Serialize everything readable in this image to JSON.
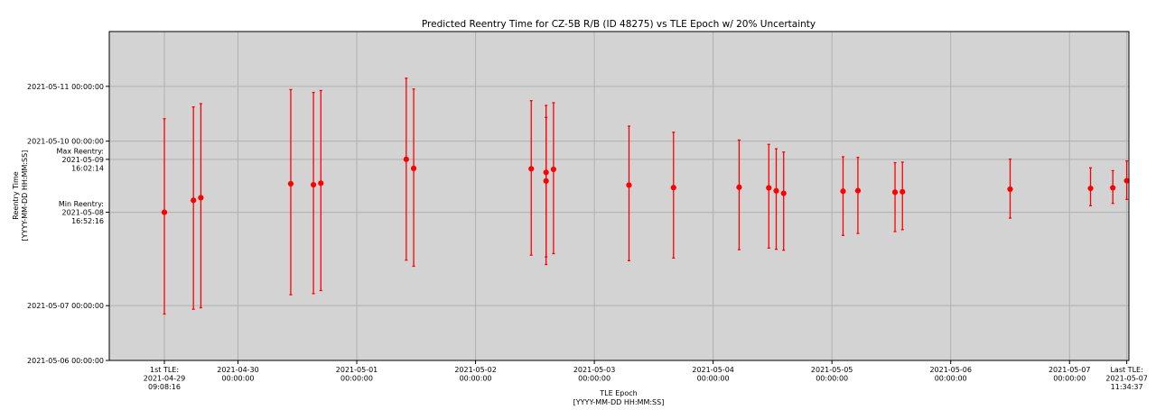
{
  "chart_data": {
    "type": "scatter",
    "title": "Predicted Reentry Time for CZ-5B R/B (ID 48275) vs TLE Epoch w/ 20% Uncertainty",
    "xlabel": [
      "TLE Epoch",
      "[YYYY-MM-DD HH:MM:SS]"
    ],
    "ylabel": [
      "Reentry Time",
      "[YYYY-MM-DD HH:MM:SS]"
    ],
    "xlim": [
      "2021-04-28 22:00",
      "2021-05-07 12:00"
    ],
    "ylim": [
      "2021-05-06 00:00",
      "2021-05-12 00:00"
    ],
    "grid": true,
    "background": "#d3d3d3",
    "marker_color": "#ff0000",
    "x_ticks": [
      {
        "value": "2021-04-29 09:08",
        "lines": [
          "1st TLE:",
          "2021-04-29",
          "09:08:16"
        ]
      },
      {
        "value": "2021-04-30 00:00",
        "lines": [
          "2021-04-30",
          "00:00:00"
        ]
      },
      {
        "value": "2021-05-01 00:00",
        "lines": [
          "2021-05-01",
          "00:00:00"
        ]
      },
      {
        "value": "2021-05-02 00:00",
        "lines": [
          "2021-05-02",
          "00:00:00"
        ]
      },
      {
        "value": "2021-05-03 00:00",
        "lines": [
          "2021-05-03",
          "00:00:00"
        ]
      },
      {
        "value": "2021-05-04 00:00",
        "lines": [
          "2021-05-04",
          "00:00:00"
        ]
      },
      {
        "value": "2021-05-05 00:00",
        "lines": [
          "2021-05-05",
          "00:00:00"
        ]
      },
      {
        "value": "2021-05-06 00:00",
        "lines": [
          "2021-05-06",
          "00:00:00"
        ]
      },
      {
        "value": "2021-05-07 00:00",
        "lines": [
          "2021-05-07",
          "00:00:00"
        ]
      },
      {
        "value": "2021-05-07 11:34",
        "lines": [
          "Last TLE:",
          "2021-05-07",
          "11:34:37"
        ]
      }
    ],
    "y_ticks": [
      {
        "value": "2021-05-06 00:00",
        "lines": [
          "2021-05-06 00:00:00"
        ]
      },
      {
        "value": "2021-05-07 00:00",
        "lines": [
          "2021-05-07 00:00:00"
        ]
      },
      {
        "value": "2021-05-08 16:52",
        "lines": [
          "Min Reentry:",
          "2021-05-08",
          "16:52:16"
        ]
      },
      {
        "value": "2021-05-09 16:02",
        "lines": [
          "Max Reentry:",
          "2021-05-09",
          "16:02:14"
        ]
      },
      {
        "value": "2021-05-10 00:00",
        "lines": [
          "2021-05-10 00:00:00"
        ]
      },
      {
        "value": "2021-05-11 00:00",
        "lines": [
          "2021-05-11 00:00:00"
        ]
      }
    ],
    "points": [
      {
        "x": "2021-04-29 09:08",
        "y": "2021-05-08 16:52",
        "lo": "2021-05-06 20:20",
        "hi": "2021-05-10 09:50"
      },
      {
        "x": "2021-04-29 15:00",
        "y": "2021-05-08 22:05",
        "lo": "2021-05-06 22:25",
        "hi": "2021-05-10 15:00"
      },
      {
        "x": "2021-04-29 16:30",
        "y": "2021-05-08 23:15",
        "lo": "2021-05-06 23:05",
        "hi": "2021-05-10 16:25"
      },
      {
        "x": "2021-04-30 10:40",
        "y": "2021-05-09 05:20",
        "lo": "2021-05-07 04:45",
        "hi": "2021-05-10 22:35"
      },
      {
        "x": "2021-04-30 15:15",
        "y": "2021-05-09 04:55",
        "lo": "2021-05-07 05:15",
        "hi": "2021-05-10 21:20"
      },
      {
        "x": "2021-04-30 16:45",
        "y": "2021-05-09 05:35",
        "lo": "2021-05-07 06:35",
        "hi": "2021-05-10 22:10"
      },
      {
        "x": "2021-05-01 10:00",
        "y": "2021-05-09 16:02",
        "lo": "2021-05-07 19:55",
        "hi": "2021-05-11 03:35"
      },
      {
        "x": "2021-05-01 11:30",
        "y": "2021-05-09 12:05",
        "lo": "2021-05-07 17:15",
        "hi": "2021-05-10 22:50"
      },
      {
        "x": "2021-05-02 11:15",
        "y": "2021-05-09 11:55",
        "lo": "2021-05-07 22:05",
        "hi": "2021-05-10 17:45"
      },
      {
        "x": "2021-05-02 14:15",
        "y": "2021-05-09 10:20",
        "lo": "2021-05-07 18:00",
        "hi": "2021-05-10 15:40"
      },
      {
        "x": "2021-05-02 14:15",
        "y": "2021-05-09 06:35",
        "lo": "2021-05-07 21:20",
        "hi": "2021-05-10 10:25"
      },
      {
        "x": "2021-05-02 15:45",
        "y": "2021-05-09 11:40",
        "lo": "2021-05-07 22:45",
        "hi": "2021-05-10 16:50"
      },
      {
        "x": "2021-05-03 07:00",
        "y": "2021-05-09 04:45",
        "lo": "2021-05-07 19:40",
        "hi": "2021-05-10 06:35"
      },
      {
        "x": "2021-05-03 16:00",
        "y": "2021-05-09 03:40",
        "lo": "2021-05-07 20:50",
        "hi": "2021-05-10 03:55"
      },
      {
        "x": "2021-05-04 05:15",
        "y": "2021-05-09 03:50",
        "lo": "2021-05-08 00:30",
        "hi": "2021-05-10 00:30"
      },
      {
        "x": "2021-05-04 11:15",
        "y": "2021-05-09 03:35",
        "lo": "2021-05-08 01:10",
        "hi": "2021-05-09 22:35"
      },
      {
        "x": "2021-05-04 12:45",
        "y": "2021-05-09 02:15",
        "lo": "2021-05-08 00:40",
        "hi": "2021-05-09 20:40"
      },
      {
        "x": "2021-05-04 14:15",
        "y": "2021-05-09 01:10",
        "lo": "2021-05-08 00:15",
        "hi": "2021-05-09 19:15"
      },
      {
        "x": "2021-05-05 02:15",
        "y": "2021-05-09 02:05",
        "lo": "2021-05-08 06:45",
        "hi": "2021-05-09 17:10"
      },
      {
        "x": "2021-05-05 05:15",
        "y": "2021-05-09 02:20",
        "lo": "2021-05-08 07:35",
        "hi": "2021-05-09 16:55"
      },
      {
        "x": "2021-05-05 12:45",
        "y": "2021-05-09 01:40",
        "lo": "2021-05-08 08:25",
        "hi": "2021-05-09 14:35"
      },
      {
        "x": "2021-05-05 14:15",
        "y": "2021-05-09 01:50",
        "lo": "2021-05-08 09:15",
        "hi": "2021-05-09 14:50"
      },
      {
        "x": "2021-05-06 12:00",
        "y": "2021-05-09 03:00",
        "lo": "2021-05-08 14:20",
        "hi": "2021-05-09 16:10"
      },
      {
        "x": "2021-05-07 04:15",
        "y": "2021-05-09 03:20",
        "lo": "2021-05-08 19:45",
        "hi": "2021-05-09 12:20"
      },
      {
        "x": "2021-05-07 08:45",
        "y": "2021-05-09 03:35",
        "lo": "2021-05-08 20:45",
        "hi": "2021-05-09 11:05"
      },
      {
        "x": "2021-05-07 11:34",
        "y": "2021-05-09 06:40",
        "lo": "2021-05-08 22:30",
        "hi": "2021-05-09 15:20"
      }
    ]
  }
}
